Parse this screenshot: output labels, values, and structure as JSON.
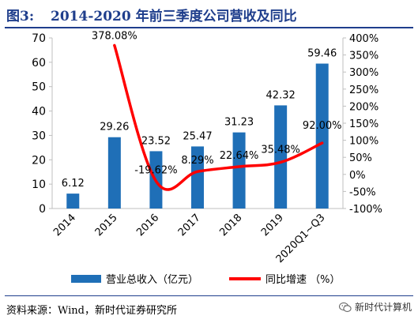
{
  "figure": {
    "label": "图3:",
    "title": "2014-2020 年前三季度公司营收及同比"
  },
  "source": "资料来源：Wind，新时代证券研究所",
  "watermark": "新时代计算机",
  "colors": {
    "bar": "#1f6fb7",
    "line": "#ff0000",
    "title": "#1f3e8c",
    "axis": "#bfbfbf"
  },
  "chart_data": {
    "type": "bar",
    "categories": [
      "2014",
      "2015",
      "2016",
      "2017",
      "2018",
      "2019",
      "2020Q1~Q3"
    ],
    "series": [
      {
        "name": "营业总收入（亿元）",
        "type": "bar",
        "axis": "left",
        "values": [
          6.12,
          29.26,
          23.52,
          25.47,
          31.23,
          42.32,
          59.46
        ],
        "labels": [
          "6.12",
          "29.26",
          "23.52",
          "25.47",
          "31.23",
          "42.32",
          "59.46"
        ]
      },
      {
        "name": "同比增速 （%）",
        "type": "line",
        "axis": "right",
        "values": [
          null,
          378.08,
          -19.62,
          8.29,
          22.64,
          35.48,
          92.0
        ],
        "labels": [
          "",
          "378.08%",
          "-19.62%",
          "8.29%",
          "22.64%",
          "35.48%",
          "92.00%"
        ]
      }
    ],
    "left_axis": {
      "ylim": [
        0,
        70
      ],
      "ticks": [
        "0",
        "10",
        "20",
        "30",
        "40",
        "50",
        "60",
        "70"
      ]
    },
    "right_axis": {
      "ylim": [
        -100,
        400
      ],
      "ticks": [
        "-100%",
        "-50%",
        "0%",
        "50%",
        "100%",
        "150%",
        "200%",
        "250%",
        "300%",
        "350%",
        "400%"
      ]
    },
    "legend_position": "bottom"
  }
}
